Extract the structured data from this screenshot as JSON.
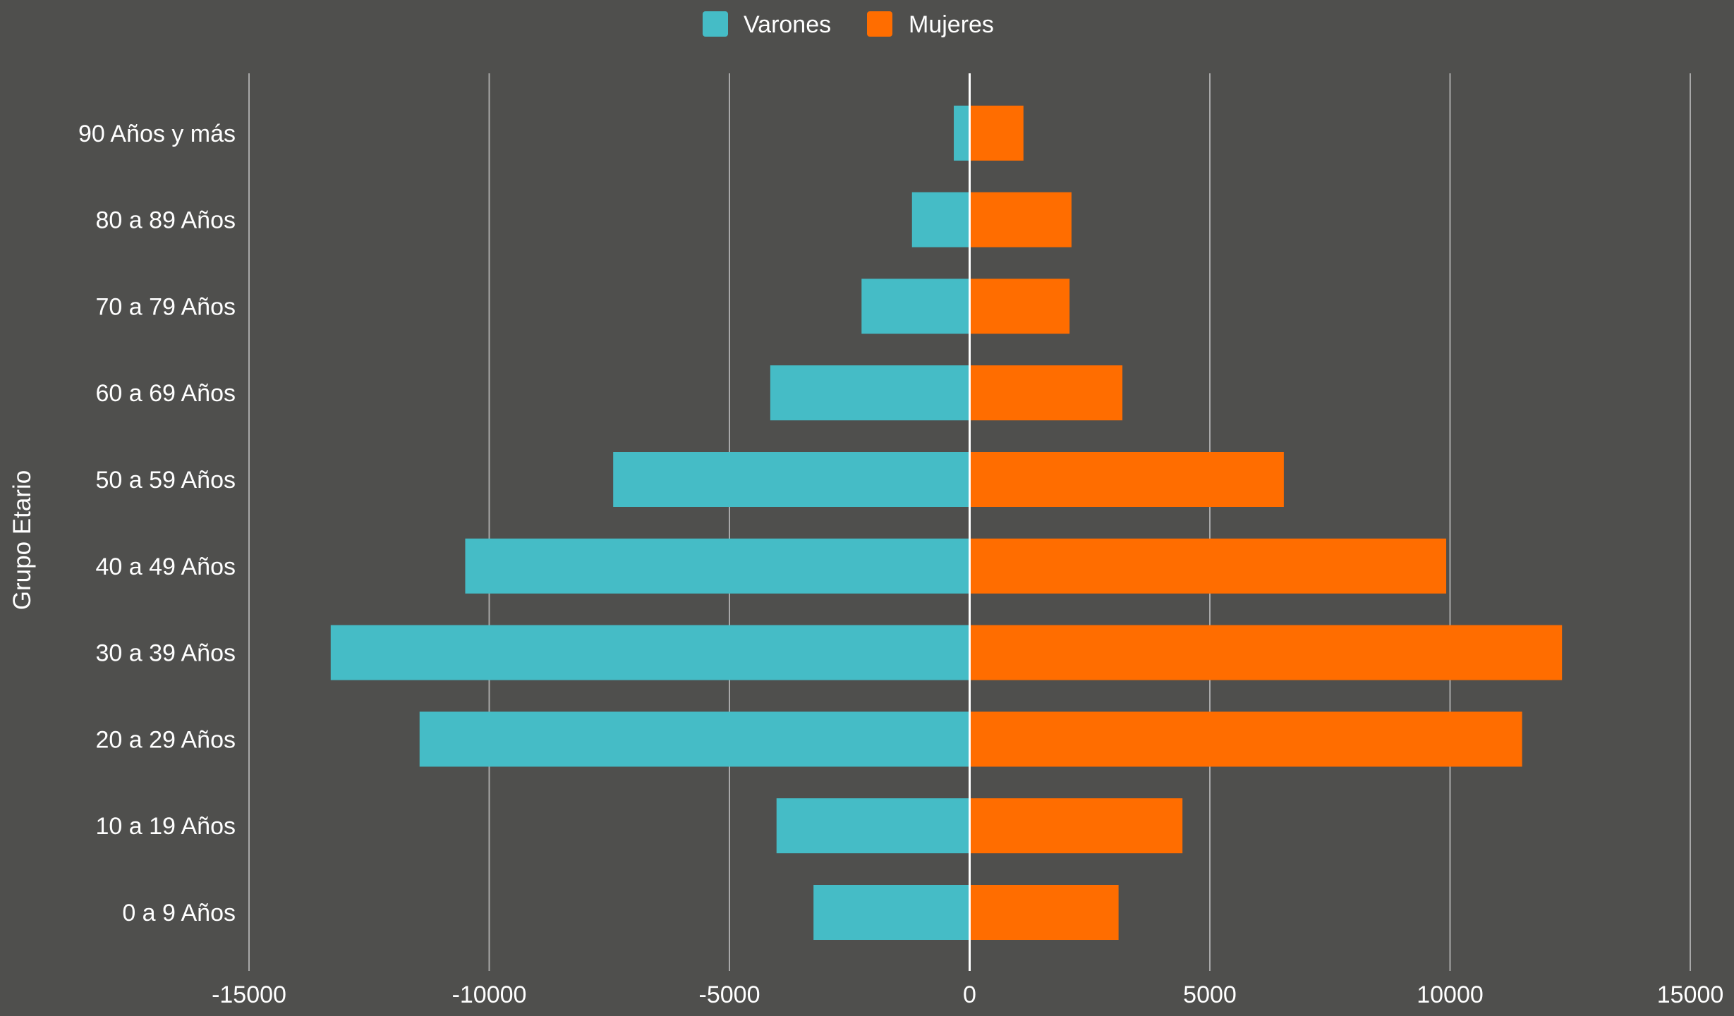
{
  "chart_data": {
    "type": "bar",
    "orientation": "horizontal",
    "stacked_diverging": true,
    "categories": [
      "0 a 9 Años",
      "10 a 19 Años",
      "20 a 29 Años",
      "30 a 39 Años",
      "40 a 49 Años",
      "50 a 59 Años",
      "60 a 69 Años",
      "70 a 79 Años",
      "80 a 89 Años",
      "90 Años y más"
    ],
    "series": [
      {
        "name": "Varones",
        "color": "#45bcc6",
        "values": [
          -3250,
          -4020,
          -11450,
          -13300,
          -10500,
          -7420,
          -4150,
          -2250,
          -1200,
          -330
        ]
      },
      {
        "name": "Mujeres",
        "color": "#ff6d00",
        "values": [
          3100,
          4430,
          11500,
          12330,
          9920,
          6540,
          3180,
          2080,
          2120,
          1120
        ]
      }
    ],
    "xlim": [
      -15000,
      15000
    ],
    "x_ticks": [
      "-15000",
      "-10000",
      "-5000",
      "0",
      "5000",
      "10000",
      "15000"
    ],
    "xlabel": "",
    "ylabel": "Grupo Etario",
    "title": "",
    "grid": "vertical",
    "legend_position": "top",
    "background": "#4f4f4d",
    "gridline_color": "#a8a8a8",
    "zero_line_color": "#ffffff",
    "text_color": "#ffffff"
  }
}
